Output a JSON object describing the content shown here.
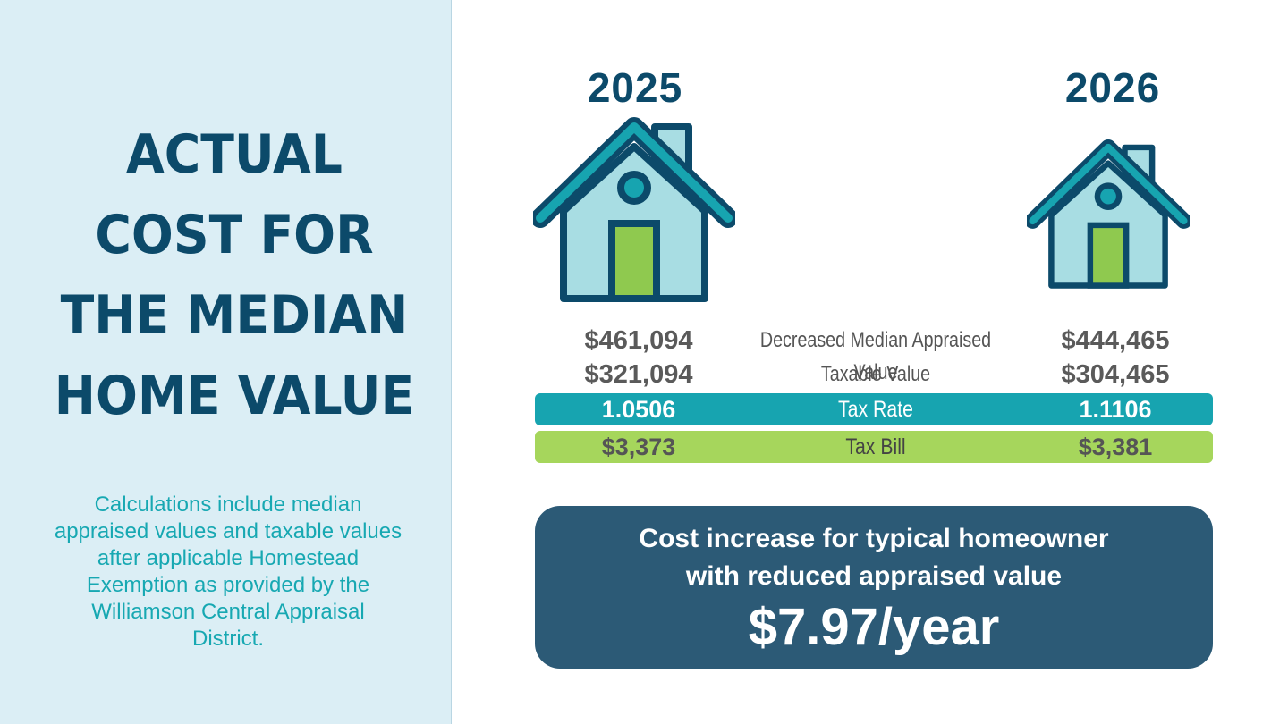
{
  "title_lines": [
    "ACTUAL",
    "COST FOR",
    "THE MEDIAN",
    "HOME VALUE"
  ],
  "footnote": "Calculations include median appraised values and taxable values after applicable Homestead Exemption as provided by the Williamson Central Appraisal District.",
  "years": {
    "left": "2025",
    "right": "2026"
  },
  "table": {
    "appraised": {
      "label": "Decreased Median Appraised Value",
      "left": "$461,094",
      "right": "$444,465"
    },
    "taxable": {
      "label": "Taxable Value",
      "left": "$321,094",
      "right": "$304,465"
    },
    "rate": {
      "label": "Tax Rate",
      "left": "1.0506",
      "right": "1.1106"
    },
    "bill": {
      "label": "Tax Bill",
      "left": "$3,373",
      "right": "$3,381"
    }
  },
  "summary": {
    "line1": "Cost increase for typical homeowner",
    "line2": "with reduced appraised value",
    "amount": "$7.97/year"
  },
  "colors": {
    "navy": "#0c4a6a",
    "teal": "#17a4b0",
    "green": "#a6d65c",
    "panel": "#dbeef5",
    "box": "#2c5a76"
  },
  "icons": {
    "house_2025": "house-icon",
    "house_2026": "house-icon"
  }
}
